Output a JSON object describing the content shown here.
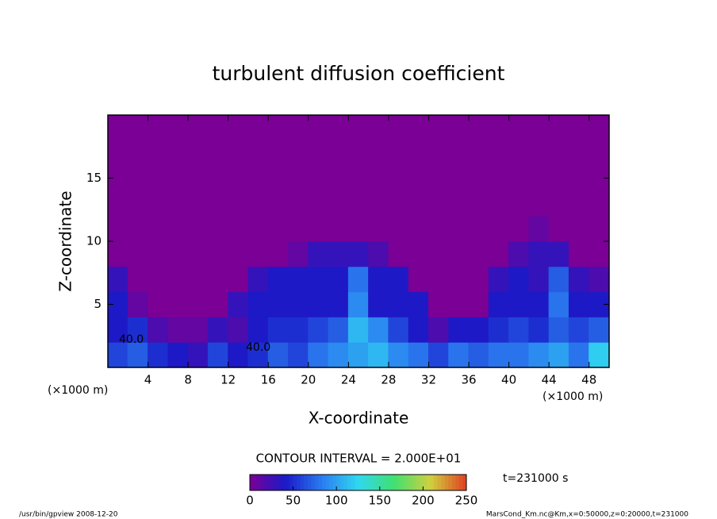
{
  "chart_data": {
    "type": "heatmap",
    "title": "turbulent diffusion coefficient",
    "x_label": "X-coordinate",
    "y_label": "Z-coordinate",
    "x_unit": "(×1000 m)",
    "contour_interval": "CONTOUR INTERVAL = 2.000E+01",
    "time_label": "t=231000 s",
    "annotations": [
      "40.0",
      "40.0"
    ],
    "footer_left": "/usr/bin/gpview   2008-12-20",
    "footer_right": "MarsCond_Km.nc@Km,x=0:50000,z=0:20000,t=231000",
    "x": [
      1,
      3,
      5,
      7,
      9,
      11,
      13,
      15,
      17,
      19,
      21,
      23,
      25,
      27,
      29,
      31,
      33,
      35,
      37,
      39,
      41,
      43,
      45,
      47,
      49
    ],
    "y": [
      1,
      3,
      5,
      7,
      9,
      11,
      13,
      15,
      17,
      19
    ],
    "values": [
      [
        60,
        70,
        50,
        40,
        30,
        60,
        40,
        50,
        70,
        60,
        80,
        90,
        100,
        110,
        90,
        80,
        60,
        80,
        70,
        80,
        80,
        90,
        100,
        80,
        120
      ],
      [
        40,
        50,
        20,
        10,
        10,
        30,
        20,
        40,
        50,
        50,
        60,
        70,
        110,
        90,
        60,
        40,
        20,
        40,
        40,
        50,
        60,
        50,
        70,
        60,
        70
      ],
      [
        40,
        10,
        0,
        0,
        0,
        0,
        30,
        40,
        40,
        40,
        40,
        40,
        90,
        40,
        40,
        40,
        0,
        0,
        0,
        40,
        40,
        40,
        80,
        40,
        40
      ],
      [
        30,
        0,
        0,
        0,
        0,
        0,
        0,
        30,
        40,
        40,
        40,
        40,
        80,
        40,
        40,
        0,
        0,
        0,
        0,
        30,
        40,
        30,
        70,
        30,
        20
      ],
      [
        0,
        0,
        0,
        0,
        0,
        0,
        0,
        0,
        0,
        10,
        30,
        30,
        30,
        20,
        0,
        0,
        0,
        0,
        0,
        0,
        20,
        30,
        30,
        0,
        0
      ],
      [
        0,
        0,
        0,
        0,
        0,
        0,
        0,
        0,
        0,
        0,
        0,
        0,
        0,
        0,
        0,
        0,
        0,
        0,
        0,
        0,
        0,
        10,
        0,
        0,
        0
      ],
      [
        0,
        0,
        0,
        0,
        0,
        0,
        0,
        0,
        0,
        0,
        0,
        0,
        0,
        0,
        0,
        0,
        0,
        0,
        0,
        0,
        0,
        0,
        0,
        0,
        0
      ],
      [
        0,
        0,
        0,
        0,
        0,
        0,
        0,
        0,
        0,
        0,
        0,
        0,
        0,
        0,
        0,
        0,
        0,
        0,
        0,
        0,
        0,
        0,
        0,
        0,
        0
      ],
      [
        0,
        0,
        0,
        0,
        0,
        0,
        0,
        0,
        0,
        0,
        0,
        0,
        0,
        0,
        0,
        0,
        0,
        0,
        0,
        0,
        0,
        0,
        0,
        0,
        0
      ],
      [
        0,
        0,
        0,
        0,
        0,
        0,
        0,
        0,
        0,
        0,
        0,
        0,
        0,
        0,
        0,
        0,
        0,
        0,
        0,
        0,
        0,
        0,
        0,
        0,
        0
      ]
    ],
    "xlim": [
      0,
      50
    ],
    "ylim": [
      0,
      20
    ],
    "xticks": [
      4,
      8,
      12,
      16,
      20,
      24,
      28,
      32,
      36,
      40,
      44,
      48
    ],
    "yticks": [
      5,
      10,
      15
    ],
    "clim": [
      0,
      250
    ],
    "cticks": [
      0,
      50,
      100,
      150,
      200,
      250
    ],
    "colorscale": [
      "#7a0096",
      "#1a1ac8",
      "#2a7cf0",
      "#30d8f0",
      "#40e070",
      "#d0d040",
      "#e04020"
    ]
  }
}
